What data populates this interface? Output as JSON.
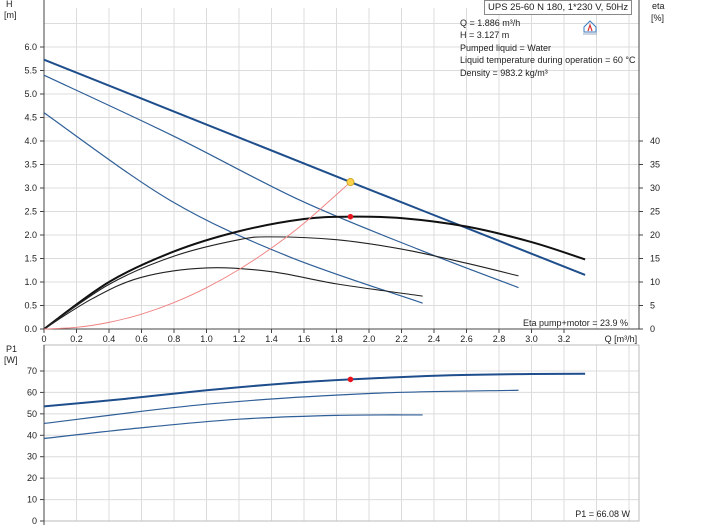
{
  "title": "UPS 25-60 N 180, 1*230 V, 50Hz",
  "info": [
    "Q = 1.886 m³/h",
    "H = 3.127 m",
    "Pumped liquid = Water",
    "Liquid temperature during operation = 60 °C",
    "Density = 983.2 kg/m³"
  ],
  "chart_data": [
    {
      "type": "line",
      "ylabel_left": "H\n[m]",
      "ylabel_left_lines": [
        "H",
        "[m]"
      ],
      "ylabel_right_lines": [
        "eta",
        "[%]"
      ],
      "xlabel": "Q [m³/h]",
      "xlim": [
        0,
        3.66
      ],
      "ylim_left": [
        0,
        6.6
      ],
      "ylim_right": [
        0,
        70
      ],
      "grid": true,
      "x_ticks": [
        "0",
        "0.2",
        "0.4",
        "0.6",
        "0.8",
        "1.0",
        "1.2",
        "1.4",
        "1.6",
        "1.8",
        "2.0",
        "2.2",
        "2.4",
        "2.6",
        "2.8",
        "3.0",
        "3.2"
      ],
      "y_ticks_left": [
        "0.0",
        "0.5",
        "1.0",
        "1.5",
        "2.0",
        "2.5",
        "3.0",
        "3.5",
        "4.0",
        "4.5",
        "5.0",
        "5.5",
        "6.0"
      ],
      "y_ticks_right": [
        "0",
        "5",
        "10",
        "15",
        "20",
        "25",
        "30",
        "35",
        "40"
      ],
      "annotation": "Eta pump+motor = 23.9 %",
      "series": [
        {
          "axis": "H",
          "color": "#1f4e8c",
          "width": 2,
          "x": [
            0,
            1,
            1.886,
            2.6,
            3.33
          ],
          "y": [
            5.73,
            4.35,
            3.127,
            2.15,
            1.15
          ]
        },
        {
          "axis": "H",
          "color": "#2f5f98",
          "width": 1.2,
          "x": [
            0,
            0.8,
            1.575,
            2.3,
            2.92
          ],
          "y": [
            5.4,
            4.1,
            2.74,
            1.7,
            0.88
          ]
        },
        {
          "axis": "H",
          "color": "#2f5f98",
          "width": 1.2,
          "x": [
            0,
            0.775,
            1.5,
            2.33
          ],
          "y": [
            4.6,
            2.74,
            1.55,
            0.55
          ]
        },
        {
          "axis": "eta",
          "color": "#111111",
          "width": 2,
          "x": [
            0,
            0.4,
            0.8,
            1.2,
            1.6,
            1.886,
            2.2,
            2.6,
            3.0,
            3.33
          ],
          "y": [
            0,
            10,
            16.5,
            20.8,
            23.4,
            23.9,
            23.6,
            21.8,
            18.5,
            14.8
          ]
        },
        {
          "axis": "eta",
          "color": "#222222",
          "width": 1.1,
          "x": [
            0,
            0.4,
            0.8,
            1.2,
            1.4,
            1.8,
            2.2,
            2.6,
            2.92
          ],
          "y": [
            0,
            9.5,
            15.5,
            19,
            19.6,
            19,
            17,
            14,
            11.3
          ]
        },
        {
          "axis": "eta",
          "color": "#222222",
          "width": 1.1,
          "x": [
            0,
            0.3,
            0.6,
            1.0,
            1.4,
            1.8,
            2.33
          ],
          "y": [
            0,
            6.5,
            11,
            13,
            12.2,
            9.6,
            7.0
          ]
        },
        {
          "axis": "H",
          "color": "#f08080",
          "width": 0.9,
          "x": [
            0,
            0.2,
            0.4,
            0.6,
            0.8,
            1.0,
            1.2,
            1.4,
            1.6,
            1.886
          ],
          "y": [
            0,
            0.035,
            0.141,
            0.316,
            0.562,
            0.879,
            1.266,
            1.723,
            2.25,
            3.127
          ]
        }
      ],
      "points": [
        {
          "axis": "H",
          "x": 1.886,
          "y": 3.127,
          "color": "#ffd24a"
        },
        {
          "axis": "eta",
          "x": 1.886,
          "y": 23.9,
          "color": "#e8141e"
        }
      ]
    },
    {
      "type": "line",
      "ylabel_lines": [
        "P1",
        "[W]"
      ],
      "xlim": [
        0,
        3.66
      ],
      "ylim": [
        0,
        80
      ],
      "grid": true,
      "y_ticks": [
        "0",
        "10",
        "20",
        "30",
        "40",
        "50",
        "60",
        "70"
      ],
      "annotation": "P1 = 66.08 W",
      "series": [
        {
          "color": "#1f4e8c",
          "width": 2,
          "x": [
            0,
            0.5,
            1.0,
            1.5,
            1.886,
            2.5,
            3.0,
            3.33
          ],
          "y": [
            53.5,
            57,
            61,
            64.3,
            66.08,
            68,
            68.6,
            68.7
          ]
        },
        {
          "color": "#2f5f98",
          "width": 1.2,
          "x": [
            0,
            1,
            2,
            2.92
          ],
          "y": [
            45.5,
            54.5,
            59.5,
            61
          ]
        },
        {
          "color": "#2f5f98",
          "width": 1.2,
          "x": [
            0,
            0.6,
            1.2,
            1.8,
            2.33
          ],
          "y": [
            38.5,
            43.5,
            47.5,
            49.3,
            49.5
          ]
        }
      ],
      "points": [
        {
          "x": 1.886,
          "y": 66.08,
          "color": "#e8141e"
        }
      ]
    }
  ]
}
